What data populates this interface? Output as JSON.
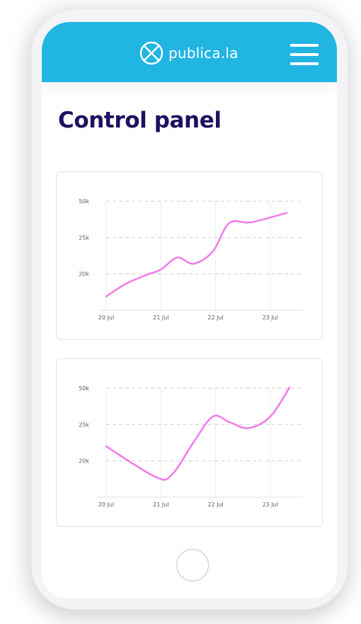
{
  "app": {
    "brand_name": "publica.la",
    "logo_icon": "circle-x-logo-icon",
    "menu_icon": "hamburger-menu-icon",
    "header_color": "#21b5e2"
  },
  "page": {
    "title": "Control panel"
  },
  "chart_data": [
    {
      "type": "line",
      "x": [
        "20 Jul",
        "21 Jul",
        "22 Jul",
        "23 Jul"
      ],
      "y_ticks": [
        "20k",
        "25k",
        "50k"
      ],
      "line_color": "#f07ee8",
      "grid": true,
      "points": [
        {
          "x": 0.0,
          "y": 0.38
        },
        {
          "x": 0.35,
          "y": 0.72
        },
        {
          "x": 0.75,
          "y": 0.98
        },
        {
          "x": 1.0,
          "y": 1.12
        },
        {
          "x": 1.3,
          "y": 1.45
        },
        {
          "x": 1.6,
          "y": 1.28
        },
        {
          "x": 1.95,
          "y": 1.62
        },
        {
          "x": 2.25,
          "y": 2.4
        },
        {
          "x": 2.65,
          "y": 2.42
        },
        {
          "x": 3.3,
          "y": 2.68
        }
      ]
    },
    {
      "type": "line",
      "x": [
        "20 Jul",
        "21 Jul",
        "22 Jul",
        "23 Jul"
      ],
      "y_ticks": [
        "20k",
        "25k",
        "50k"
      ],
      "line_color": "#f07ee8",
      "grid": true,
      "points": [
        {
          "x": 0.0,
          "y": 1.4
        },
        {
          "x": 0.9,
          "y": 0.56
        },
        {
          "x": 1.2,
          "y": 0.62
        },
        {
          "x": 1.6,
          "y": 1.52
        },
        {
          "x": 1.95,
          "y": 2.22
        },
        {
          "x": 2.25,
          "y": 2.07
        },
        {
          "x": 2.6,
          "y": 1.9
        },
        {
          "x": 3.0,
          "y": 2.22
        },
        {
          "x": 3.35,
          "y": 3.02
        }
      ]
    }
  ],
  "device": {
    "home_button_icon": "home-button-circle-icon"
  }
}
